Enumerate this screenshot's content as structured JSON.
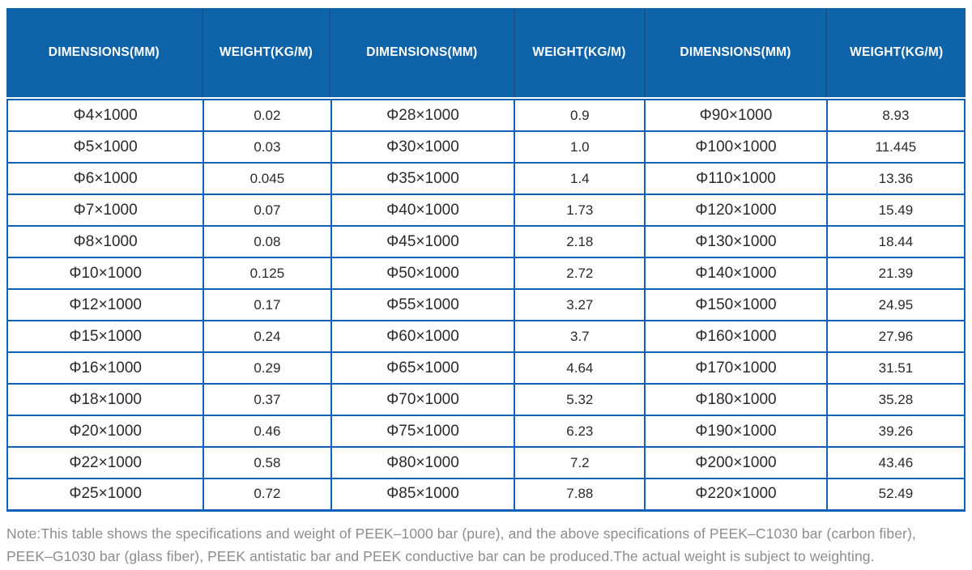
{
  "colors": {
    "header_bg": "#0f63a8",
    "header_divider": "#1d538c",
    "grid_border": "#0f62b5",
    "cell_text": "#2a2a2a",
    "note_text": "#8d8d8d"
  },
  "table": {
    "columns": [
      "DIMENSIONS(MM)",
      "WEIGHT(KG/M)",
      "DIMENSIONS(MM)",
      "WEIGHT(KG/M)",
      "DIMENSIONS(MM)",
      "WEIGHT(KG/M)"
    ],
    "rows": [
      [
        "Φ4×1000",
        "0.02",
        "Φ28×1000",
        "0.9",
        "Φ90×1000",
        "8.93"
      ],
      [
        "Φ5×1000",
        "0.03",
        "Φ30×1000",
        "1.0",
        "Φ100×1000",
        "11.445"
      ],
      [
        "Φ6×1000",
        "0.045",
        "Φ35×1000",
        "1.4",
        "Φ110×1000",
        "13.36"
      ],
      [
        "Φ7×1000",
        "0.07",
        "Φ40×1000",
        "1.73",
        "Φ120×1000",
        "15.49"
      ],
      [
        "Φ8×1000",
        "0.08",
        "Φ45×1000",
        "2.18",
        "Φ130×1000",
        "18.44"
      ],
      [
        "Φ10×1000",
        "0.125",
        "Φ50×1000",
        "2.72",
        "Φ140×1000",
        "21.39"
      ],
      [
        "Φ12×1000",
        "0.17",
        "Φ55×1000",
        "3.27",
        "Φ150×1000",
        "24.95"
      ],
      [
        "Φ15×1000",
        "0.24",
        "Φ60×1000",
        "3.7",
        "Φ160×1000",
        "27.96"
      ],
      [
        "Φ16×1000",
        "0.29",
        "Φ65×1000",
        "4.64",
        "Φ170×1000",
        "31.51"
      ],
      [
        "Φ18×1000",
        "0.37",
        "Φ70×1000",
        "5.32",
        "Φ180×1000",
        "35.28"
      ],
      [
        "Φ20×1000",
        "0.46",
        "Φ75×1000",
        "6.23",
        "Φ190×1000",
        "39.26"
      ],
      [
        "Φ22×1000",
        "0.58",
        "Φ80×1000",
        "7.2",
        "Φ200×1000",
        "43.46"
      ],
      [
        "Φ25×1000",
        "0.72",
        "Φ85×1000",
        "7.88",
        "Φ220×1000",
        "52.49"
      ]
    ]
  },
  "note": "Note:This table shows the specifications and weight of PEEK–1000 bar (pure), and the above specifications of PEEK–C1030 bar (carbon fiber), PEEK–G1030 bar (glass fiber), PEEK antistatic bar and PEEK conductive bar can be produced.The actual weight is subject to weighting."
}
